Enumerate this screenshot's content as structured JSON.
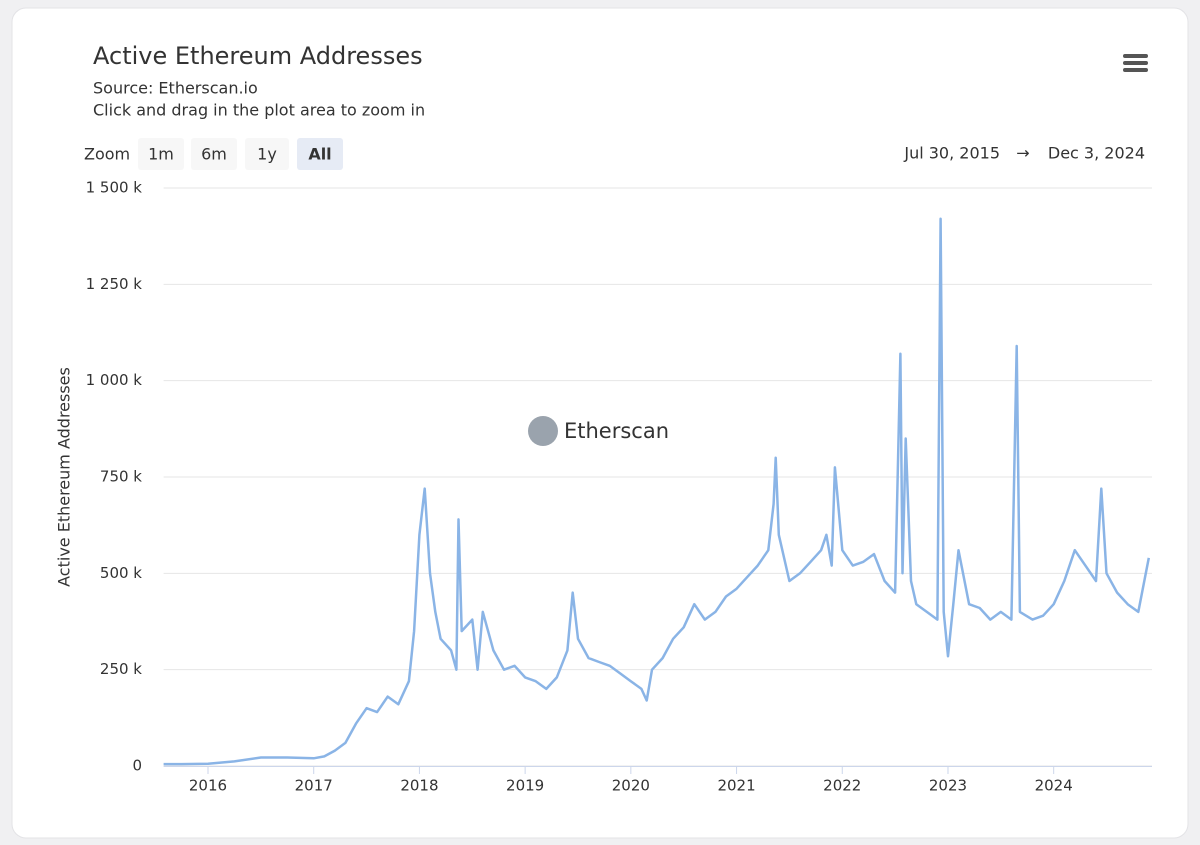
{
  "chart_data": {
    "type": "line",
    "title": "Active Ethereum Addresses",
    "subtitle": "Source: Etherscan.io",
    "hint": "Click and drag in the plot area to zoom in",
    "zoom_label": "Zoom",
    "zoom_buttons": [
      "1m",
      "6m",
      "1y",
      "All"
    ],
    "zoom_selected": 3,
    "range_from": "Jul 30, 2015",
    "range_arrow": "→",
    "range_to": "Dec 3, 2024",
    "watermark": "Etherscan",
    "y_label": "Active Ethereum Addresses",
    "color": "#8ab4e6",
    "grid": true,
    "xlim": [
      2015.58,
      2024.93
    ],
    "xticks": [
      2016,
      2017,
      2018,
      2019,
      2020,
      2021,
      2022,
      2023,
      2024
    ],
    "ylim": [
      0,
      1500000
    ],
    "yticks": [
      0,
      {
        "value": 250000,
        "label": "250 k"
      },
      {
        "value": 500000,
        "label": "500 k"
      },
      {
        "value": 750000,
        "label": "750 k"
      },
      {
        "value": 1000000,
        "label": "1 000 k"
      },
      {
        "value": 1250000,
        "label": "1 250 k"
      },
      {
        "value": 1500000,
        "label": "1 500 k"
      }
    ],
    "x": [
      2015.58,
      2015.75,
      2016.0,
      2016.25,
      2016.5,
      2016.75,
      2017.0,
      2017.1,
      2017.2,
      2017.3,
      2017.4,
      2017.5,
      2017.6,
      2017.7,
      2017.8,
      2017.9,
      2017.95,
      2018.0,
      2018.05,
      2018.1,
      2018.15,
      2018.2,
      2018.3,
      2018.35,
      2018.37,
      2018.4,
      2018.5,
      2018.55,
      2018.6,
      2018.7,
      2018.8,
      2018.9,
      2019.0,
      2019.1,
      2019.2,
      2019.3,
      2019.4,
      2019.45,
      2019.5,
      2019.6,
      2019.7,
      2019.8,
      2019.9,
      2020.0,
      2020.1,
      2020.15,
      2020.2,
      2020.3,
      2020.4,
      2020.5,
      2020.6,
      2020.7,
      2020.8,
      2020.9,
      2021.0,
      2021.1,
      2021.2,
      2021.3,
      2021.35,
      2021.37,
      2021.4,
      2021.5,
      2021.6,
      2021.7,
      2021.8,
      2021.85,
      2021.9,
      2021.93,
      2022.0,
      2022.1,
      2022.2,
      2022.3,
      2022.4,
      2022.5,
      2022.55,
      2022.57,
      2022.6,
      2022.65,
      2022.7,
      2022.8,
      2022.9,
      2022.93,
      2022.96,
      2023.0,
      2023.05,
      2023.1,
      2023.2,
      2023.3,
      2023.4,
      2023.5,
      2023.6,
      2023.65,
      2023.68,
      2023.8,
      2023.9,
      2024.0,
      2024.1,
      2024.2,
      2024.3,
      2024.4,
      2024.45,
      2024.5,
      2024.6,
      2024.7,
      2024.8,
      2024.9
    ],
    "values": [
      5000,
      5000,
      6000,
      12000,
      22000,
      22000,
      20000,
      25000,
      40000,
      60000,
      110000,
      150000,
      140000,
      180000,
      160000,
      220000,
      350000,
      600000,
      720000,
      500000,
      400000,
      330000,
      300000,
      250000,
      640000,
      350000,
      380000,
      250000,
      400000,
      300000,
      250000,
      260000,
      230000,
      220000,
      200000,
      230000,
      300000,
      450000,
      330000,
      280000,
      270000,
      260000,
      240000,
      220000,
      200000,
      170000,
      250000,
      280000,
      330000,
      360000,
      420000,
      380000,
      400000,
      440000,
      460000,
      490000,
      520000,
      560000,
      680000,
      800000,
      600000,
      480000,
      500000,
      530000,
      560000,
      600000,
      520000,
      775000,
      560000,
      520000,
      530000,
      550000,
      480000,
      450000,
      1070000,
      500000,
      850000,
      480000,
      420000,
      400000,
      380000,
      1420000,
      400000,
      285000,
      420000,
      560000,
      420000,
      410000,
      380000,
      400000,
      380000,
      1090000,
      400000,
      380000,
      390000,
      420000,
      480000,
      560000,
      520000,
      480000,
      720000,
      500000,
      450000,
      420000,
      400000,
      540000
    ]
  }
}
